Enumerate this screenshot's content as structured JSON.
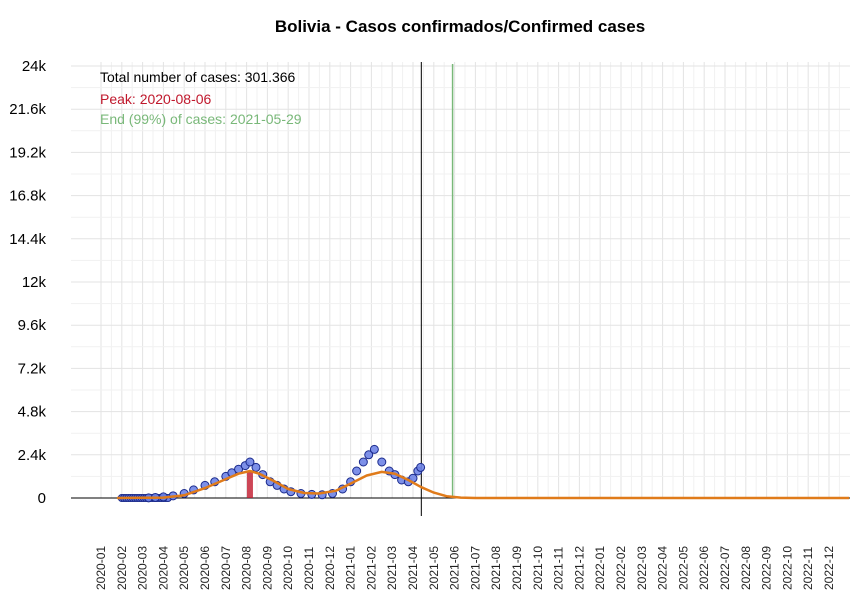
{
  "chart_data": {
    "type": "scatter",
    "title": "Bolivia - Casos confirmados/Confirmed cases",
    "xlabel": "",
    "ylabel": "",
    "ylim": [
      0,
      24000
    ],
    "y_ticks": [
      "0",
      "2.4k",
      "4.8k",
      "7.2k",
      "9.6k",
      "12k",
      "14.4k",
      "16.8k",
      "19.2k",
      "21.6k",
      "24k"
    ],
    "x_ticks": [
      "2020-01",
      "2020-02",
      "2020-03",
      "2020-04",
      "2020-05",
      "2020-06",
      "2020-07",
      "2020-08",
      "2020-09",
      "2020-10",
      "2020-11",
      "2020-12",
      "2021-01",
      "2021-02",
      "2021-03",
      "2021-04",
      "2021-05",
      "2021-06",
      "2021-07",
      "2021-08",
      "2021-09",
      "2021-10",
      "2021-11",
      "2021-12",
      "2022-01",
      "2022-02",
      "2022-03",
      "2022-04",
      "2022-05",
      "2022-06",
      "2022-07",
      "2022-08",
      "2022-09",
      "2022-10",
      "2022-11",
      "2022-12"
    ],
    "grid": true,
    "annotations": {
      "total": "Total number of cases: 301.366",
      "peak": "Peak: 2020-08-06",
      "end": "End (99%) of cases: 2021-05-29"
    },
    "colors": {
      "points_fill": "#6f84e6",
      "points_stroke": "#1a2a8c",
      "fit_line": "#e07b1a",
      "peak": "#c0182c",
      "end": "#79b879",
      "today": "#000000"
    },
    "today_date": "2021-04-13",
    "peak_date": "2020-08-06",
    "end_date": "2021-05-29",
    "series": [
      {
        "type": "points",
        "x": [
          "2020-03-10",
          "2020-03-20",
          "2020-04-01",
          "2020-04-15",
          "2020-05-01",
          "2020-05-15",
          "2020-06-01",
          "2020-06-15",
          "2020-07-01",
          "2020-07-10",
          "2020-07-20",
          "2020-07-30",
          "2020-08-06",
          "2020-08-15",
          "2020-08-25",
          "2020-09-05",
          "2020-09-15",
          "2020-09-25",
          "2020-10-05",
          "2020-10-20",
          "2020-11-05",
          "2020-11-20",
          "2020-12-05",
          "2020-12-20",
          "2021-01-01",
          "2021-01-10",
          "2021-01-20",
          "2021-01-28",
          "2021-02-05",
          "2021-02-15",
          "2021-02-25",
          "2021-03-05",
          "2021-03-15",
          "2021-03-25",
          "2021-04-01",
          "2021-04-08",
          "2021-04-12"
        ],
        "y": [
          10,
          30,
          60,
          120,
          250,
          450,
          700,
          900,
          1200,
          1400,
          1600,
          1800,
          2000,
          1700,
          1300,
          900,
          700,
          500,
          350,
          250,
          200,
          180,
          250,
          500,
          900,
          1500,
          2000,
          2400,
          2700,
          2000,
          1500,
          1300,
          1000,
          900,
          1100,
          1500,
          1700
        ]
      },
      {
        "type": "fit",
        "x": [
          "2020-01-25",
          "2020-04-01",
          "2020-05-01",
          "2020-06-01",
          "2020-07-01",
          "2020-07-20",
          "2020-08-06",
          "2020-08-20",
          "2020-09-10",
          "2020-10-01",
          "2020-10-25",
          "2020-11-15",
          "2020-12-10",
          "2021-01-01",
          "2021-01-25",
          "2021-02-15",
          "2021-03-05",
          "2021-03-25",
          "2021-04-13",
          "2021-05-01",
          "2021-05-20",
          "2021-06-10",
          "2021-07-01",
          "2022-12-31"
        ],
        "y": [
          0,
          20,
          150,
          550,
          1050,
          1350,
          1500,
          1350,
          950,
          500,
          280,
          250,
          400,
          800,
          1250,
          1450,
          1350,
          1000,
          600,
          300,
          100,
          20,
          0,
          0
        ]
      }
    ]
  }
}
